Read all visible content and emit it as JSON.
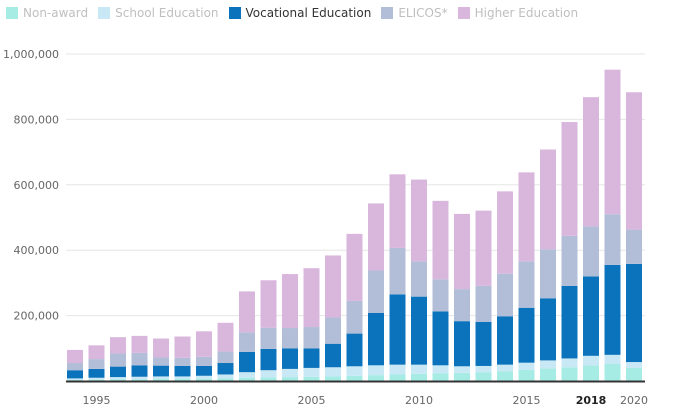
{
  "colors": {
    "non_award": "#a6ece4",
    "school": "#c8e8f6",
    "vocational": "#0b73bb",
    "elicos": "#b2bdd8",
    "higher": "#d9b6dc",
    "grid": "#e6e6e6",
    "axis": "#333333"
  },
  "legend": [
    {
      "key": "non_award",
      "label": "Non-award",
      "active": false
    },
    {
      "key": "school",
      "label": "School Education",
      "active": false
    },
    {
      "key": "vocational",
      "label": "Vocational Education",
      "active": true
    },
    {
      "key": "elicos",
      "label": "ELICOS*",
      "active": false
    },
    {
      "key": "higher",
      "label": "Higher Education",
      "active": false
    }
  ],
  "chart_data": {
    "type": "bar",
    "stacked": true,
    "x": [
      1994,
      1995,
      1996,
      1997,
      1998,
      1999,
      2000,
      2001,
      2002,
      2003,
      2004,
      2005,
      2006,
      2007,
      2008,
      2009,
      2010,
      2011,
      2012,
      2013,
      2014,
      2015,
      2016,
      2017,
      2018,
      2019,
      2020
    ],
    "series": [
      {
        "name": "Non-award",
        "key": "non_award",
        "values": [
          3000,
          4000,
          5000,
          5000,
          6000,
          6000,
          7000,
          8000,
          10000,
          11000,
          12000,
          13000,
          14000,
          16000,
          18000,
          20000,
          22000,
          24000,
          25000,
          27000,
          30000,
          34000,
          38000,
          42000,
          48000,
          52000,
          40000
        ]
      },
      {
        "name": "School Education",
        "key": "school",
        "values": [
          5000,
          6000,
          7000,
          8000,
          8000,
          8000,
          9000,
          12000,
          17000,
          22000,
          25000,
          27000,
          28000,
          29000,
          30000,
          30000,
          28000,
          24000,
          20000,
          19000,
          20000,
          22000,
          25000,
          27000,
          29000,
          28000,
          18000
        ]
      },
      {
        "name": "Vocational Education",
        "key": "vocational",
        "values": [
          25000,
          27000,
          32000,
          35000,
          33000,
          32000,
          30000,
          35000,
          62000,
          65000,
          63000,
          60000,
          72000,
          100000,
          160000,
          215000,
          208000,
          165000,
          138000,
          135000,
          148000,
          168000,
          190000,
          222000,
          243000,
          275000,
          300000
        ]
      },
      {
        "name": "ELICOS*",
        "key": "elicos",
        "values": [
          22000,
          30000,
          40000,
          38000,
          25000,
          25000,
          28000,
          35000,
          60000,
          65000,
          62000,
          65000,
          80000,
          100000,
          130000,
          142000,
          108000,
          98000,
          98000,
          110000,
          130000,
          142000,
          150000,
          153000,
          153000,
          155000,
          105000
        ]
      },
      {
        "name": "Higher Education",
        "key": "higher",
        "values": [
          40000,
          42000,
          50000,
          52000,
          58000,
          65000,
          78000,
          88000,
          125000,
          145000,
          165000,
          180000,
          190000,
          205000,
          205000,
          225000,
          250000,
          240000,
          230000,
          230000,
          252000,
          272000,
          305000,
          348000,
          395000,
          442000,
          420000
        ]
      }
    ],
    "x_ticks": [
      {
        "year": 1995,
        "label": "1995",
        "bold": false
      },
      {
        "year": 2000,
        "label": "2000",
        "bold": false
      },
      {
        "year": 2005,
        "label": "2005",
        "bold": false
      },
      {
        "year": 2010,
        "label": "2010",
        "bold": false
      },
      {
        "year": 2015,
        "label": "2015",
        "bold": false
      },
      {
        "year": 2018,
        "label": "2018",
        "bold": true
      },
      {
        "year": 2020,
        "label": "2020",
        "bold": false
      }
    ],
    "y_ticks": [
      "200,000",
      "400,000",
      "600,000",
      "800,000",
      "1,000,000"
    ],
    "y_tick_values": [
      200000,
      400000,
      600000,
      800000,
      1000000
    ],
    "ylim": [
      0,
      1000000
    ],
    "grid": true,
    "legend_position": "top-left"
  }
}
